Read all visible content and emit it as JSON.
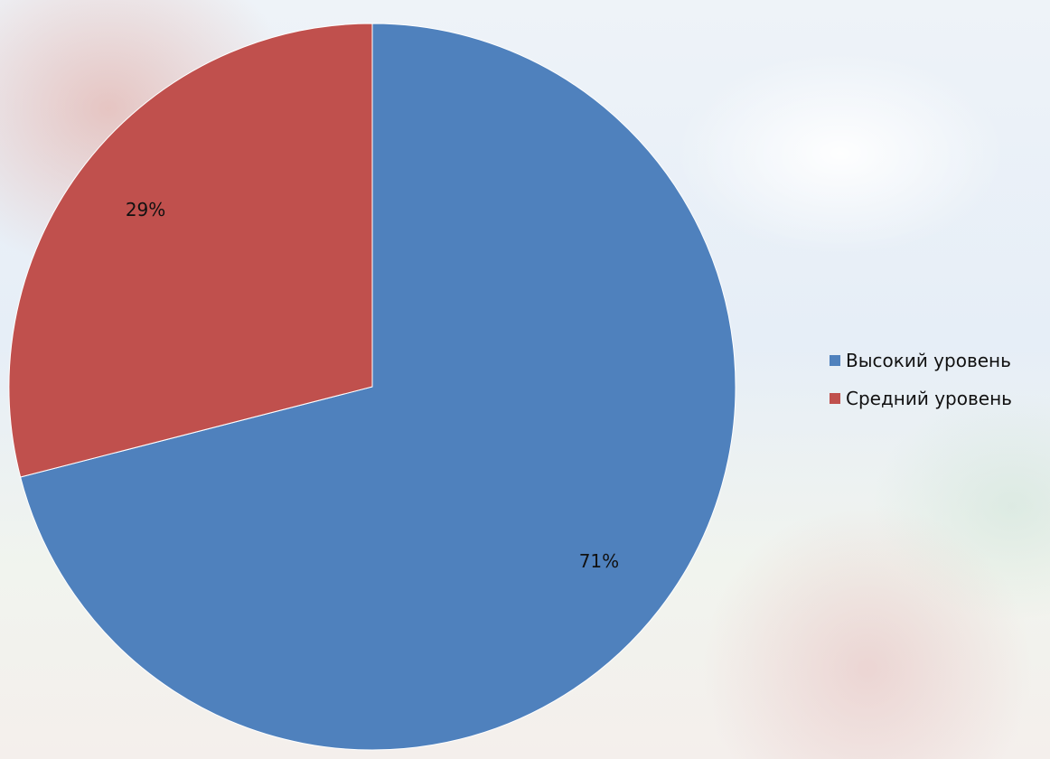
{
  "chart_data": {
    "type": "pie",
    "categories": [
      "Высокий уровень",
      "Средний уровень"
    ],
    "values": [
      71,
      29
    ],
    "data_labels": [
      "71%",
      "29%"
    ],
    "colors": [
      "#4f81bd",
      "#c0504d"
    ],
    "legend_position": "right"
  }
}
